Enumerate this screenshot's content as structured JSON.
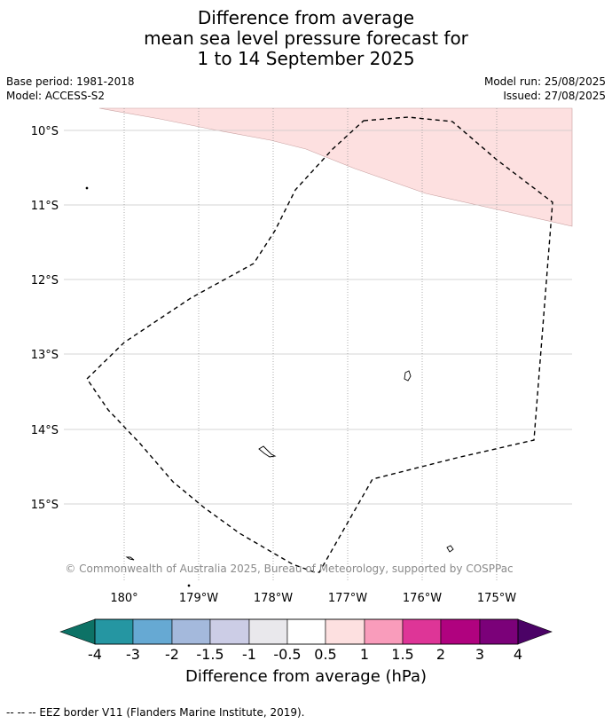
{
  "title": {
    "line1": "Difference from average",
    "line2": "mean sea level pressure forecast for",
    "line3": "1 to 14 September 2025"
  },
  "meta": {
    "base_period": "Base period: 1981-2018",
    "model": "Model: ACCESS-S2",
    "model_run": "Model run: 25/08/2025",
    "issued": "Issued: 27/08/2025"
  },
  "map": {
    "lat_labels": [
      "10°S",
      "11°S",
      "12°S",
      "13°S",
      "14°S",
      "15°S"
    ],
    "lon_labels": [
      "180°",
      "179°W",
      "178°W",
      "177°W",
      "176°W",
      "175°W"
    ],
    "copyright": "© Commonwealth of Australia 2025, Bureau of Meteorology, supported by COSPPac",
    "anomaly_fill_color": "#fde0e0",
    "eez_line_style": "dashed"
  },
  "colorbar": {
    "title": "Difference from average (hPa)",
    "tick_labels": [
      "-4",
      "-3",
      "-2",
      "-1.5",
      "-1",
      "-0.5",
      "0.5",
      "1",
      "1.5",
      "2",
      "3",
      "4"
    ],
    "colors": [
      "#0d7266",
      "#2596a2",
      "#66a9d3",
      "#a4b9dc",
      "#cccde6",
      "#e9e8ec",
      "#ffffff",
      "#fde0e0",
      "#f99cbb",
      "#de3597",
      "#b0027f",
      "#7b0179",
      "#4b0266"
    ]
  },
  "footer": "--  --  -- EEZ border V11 (Flanders Marine Institute, 2019)."
}
